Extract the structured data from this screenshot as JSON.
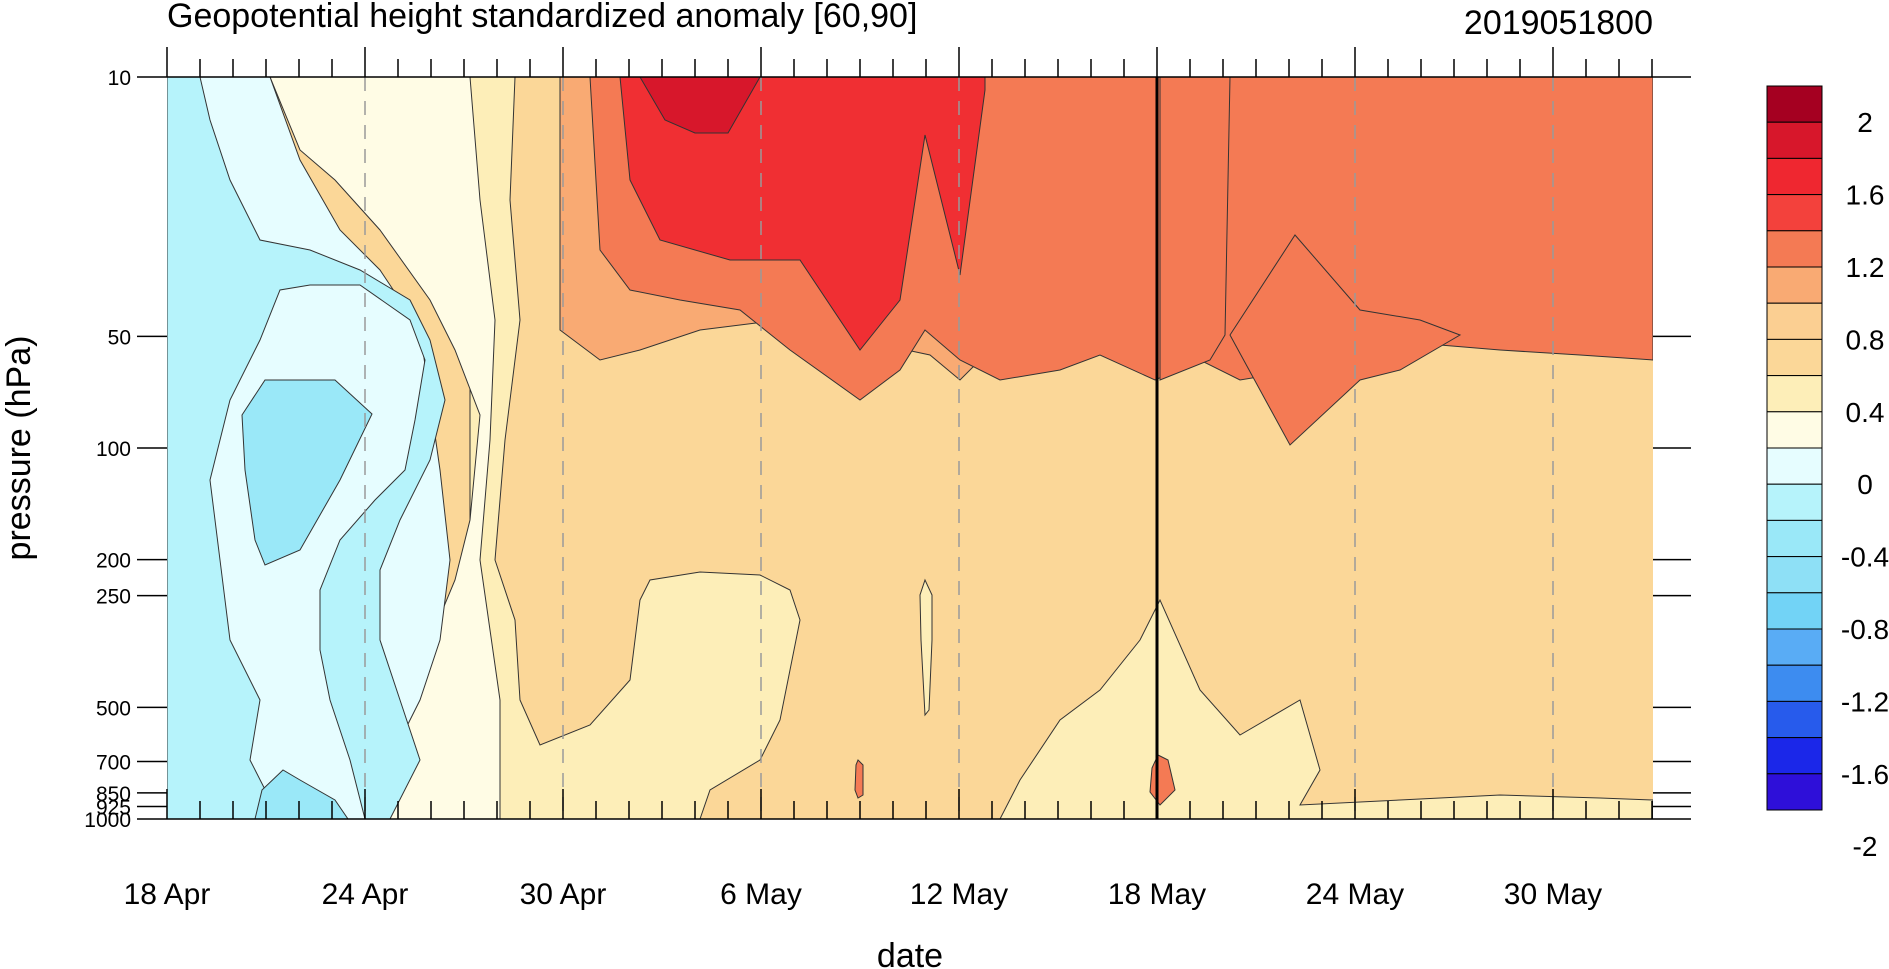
{
  "chart_data": {
    "type": "contour",
    "title": "Geopotential height standardized anomaly [60,90]",
    "date_stamp": "2019051800",
    "xlabel": "date",
    "ylabel": "pressure (hPa)",
    "x_ticks": [
      "18 Apr",
      "24 Apr",
      "30 Apr",
      "6 May",
      "12 May",
      "18 May",
      "24 May",
      "30 May"
    ],
    "y_ticks": [
      "10",
      "50",
      "100",
      "200",
      "250",
      "500",
      "700",
      "850",
      "925",
      "1000"
    ],
    "y_scale": "log",
    "ylim": [
      1000,
      10
    ],
    "current_date_line": "18 May",
    "levels": [
      -2,
      -1.8,
      -1.6,
      -1.4,
      -1.2,
      -1.0,
      -0.8,
      -0.6,
      -0.4,
      -0.2,
      0,
      0.2,
      0.4,
      0.6,
      0.8,
      1.0,
      1.2,
      1.4,
      1.6,
      1.8,
      2
    ],
    "colorbar_labels": [
      "2",
      "1.6",
      "1.2",
      "0.8",
      "0.4",
      "0",
      "-0.4",
      "-0.8",
      "-1.2",
      "-1.6",
      "-2"
    ],
    "colorbar_colors_top_to_bottom": [
      "#a50021",
      "#d7172b",
      "#ef2730",
      "#f3413c",
      "#f47a54",
      "#f9aa73",
      "#fbcf92",
      "#fbd798",
      "#fdeeb8",
      "#fffce5",
      "#e6fdff",
      "#b6f3fb",
      "#9ae8f8",
      "#8ee0f6",
      "#72d3f6",
      "#59acf5",
      "#3d8cf0",
      "#275bec",
      "#1b27e9",
      "#2e0fd9"
    ]
  }
}
